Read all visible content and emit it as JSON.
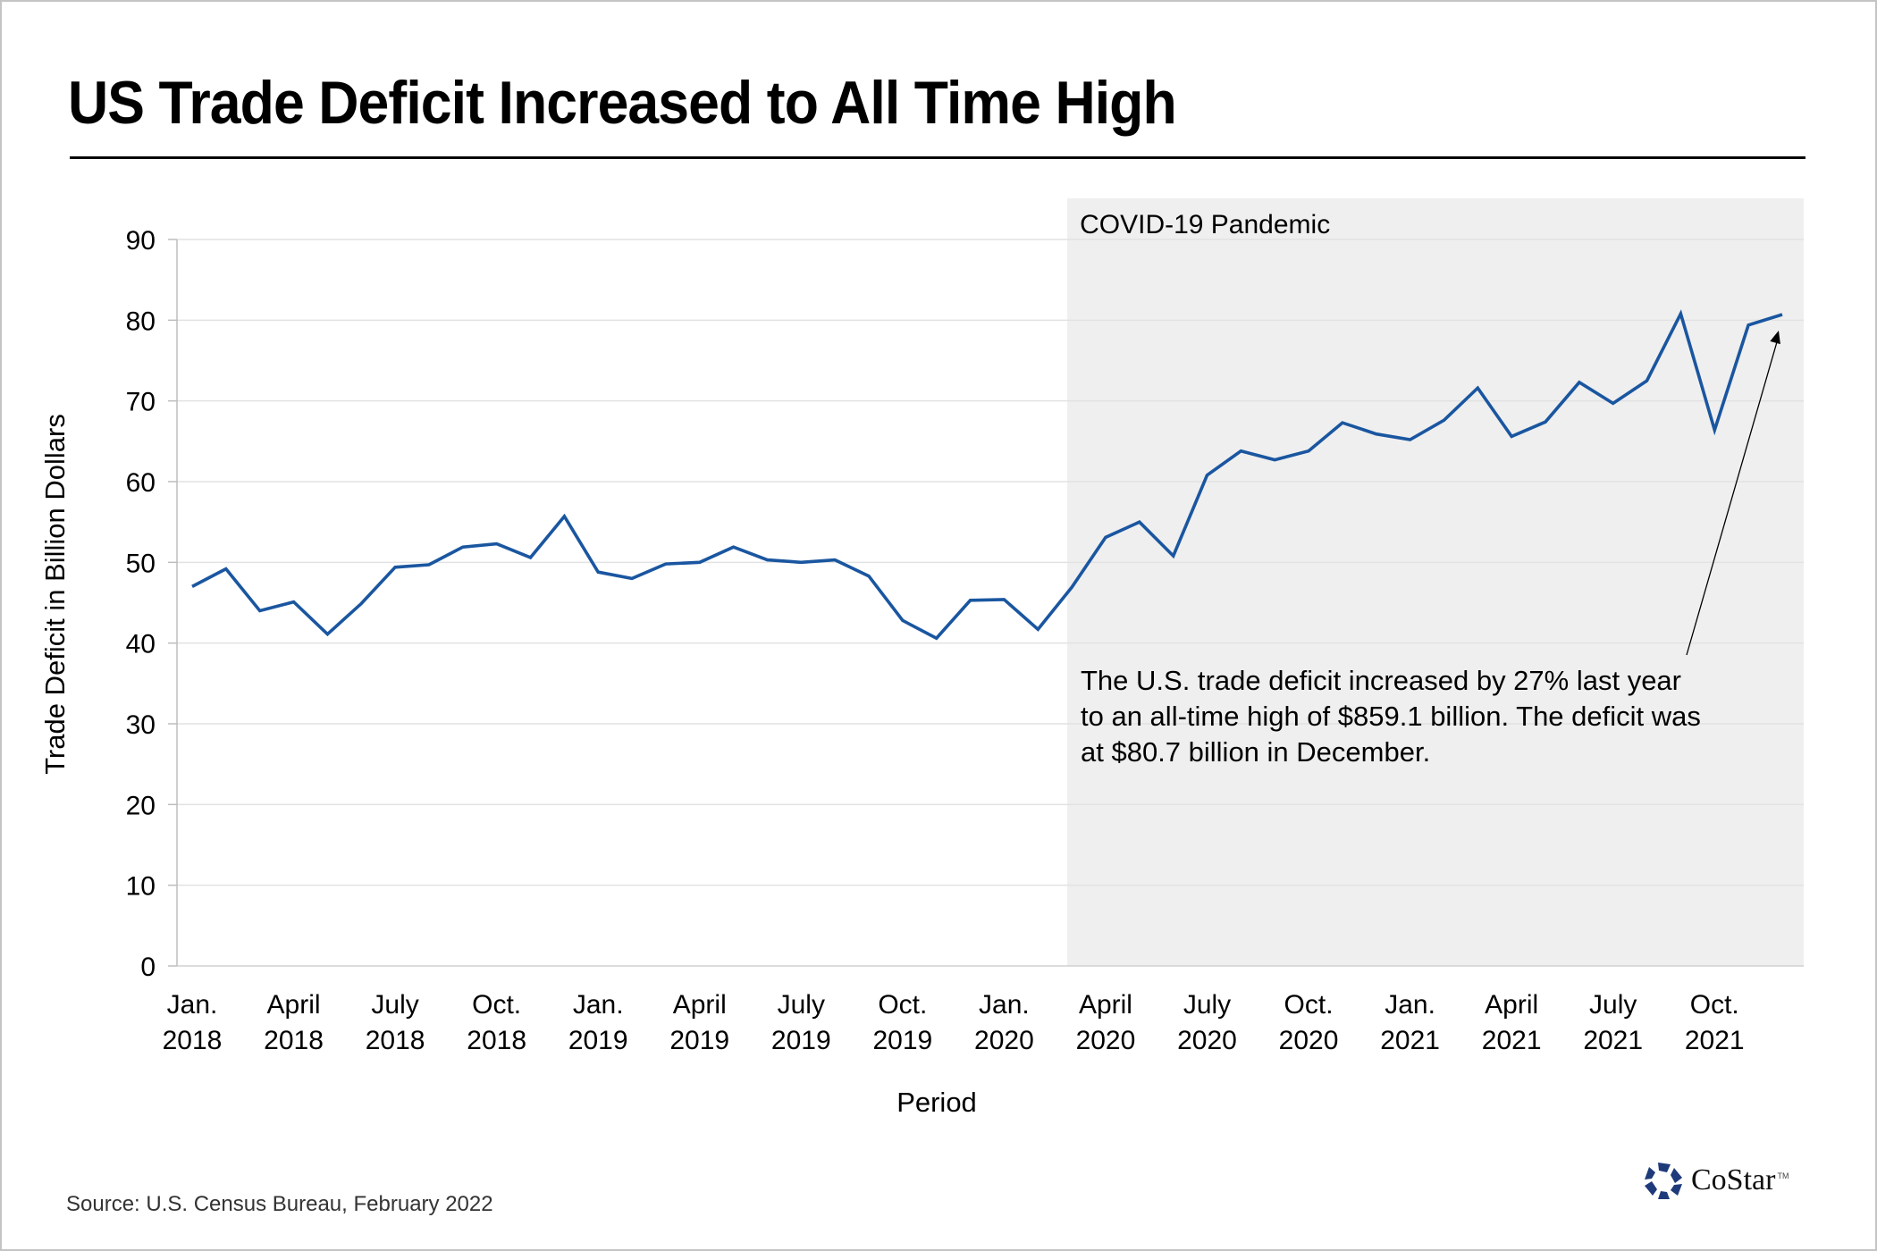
{
  "page": {
    "title": "US Trade Deficit Increased to All Time High",
    "source": "Source: U.S. Census Bureau, February 2022",
    "logo": {
      "text": "CoStar",
      "tm": "TM",
      "color": "#1f3a7a"
    }
  },
  "chart_data": {
    "type": "line",
    "title": "US Trade Deficit Increased to All Time High",
    "xlabel": "Period",
    "ylabel": "Trade Deficit in Billion Dollars",
    "ylim": [
      0,
      90
    ],
    "yticks": [
      0,
      10,
      20,
      30,
      40,
      50,
      60,
      70,
      80,
      90
    ],
    "grid": true,
    "line_color": "#1a56a0",
    "x": [
      "2018-01",
      "2018-02",
      "2018-03",
      "2018-04",
      "2018-05",
      "2018-06",
      "2018-07",
      "2018-08",
      "2018-09",
      "2018-10",
      "2018-11",
      "2018-12",
      "2019-01",
      "2019-02",
      "2019-03",
      "2019-04",
      "2019-05",
      "2019-06",
      "2019-07",
      "2019-08",
      "2019-09",
      "2019-10",
      "2019-11",
      "2019-12",
      "2020-01",
      "2020-02",
      "2020-03",
      "2020-04",
      "2020-05",
      "2020-06",
      "2020-07",
      "2020-08",
      "2020-09",
      "2020-10",
      "2020-11",
      "2020-12",
      "2021-01",
      "2021-02",
      "2021-03",
      "2021-04",
      "2021-05",
      "2021-06",
      "2021-07",
      "2021-08",
      "2021-09",
      "2021-10",
      "2021-11",
      "2021-12"
    ],
    "series": [
      {
        "name": "Trade Deficit",
        "values": [
          47.0,
          49.2,
          44.0,
          45.1,
          41.1,
          44.9,
          49.4,
          49.7,
          51.9,
          52.3,
          50.6,
          55.7,
          48.8,
          48.0,
          49.8,
          50.0,
          51.9,
          50.3,
          50.0,
          50.3,
          48.3,
          42.8,
          40.6,
          45.3,
          45.4,
          41.7,
          46.9,
          53.1,
          55.0,
          50.8,
          60.8,
          63.8,
          62.7,
          63.8,
          67.3,
          65.9,
          65.2,
          67.6,
          71.6,
          65.6,
          67.4,
          72.3,
          69.7,
          72.5,
          80.8,
          66.4,
          79.4,
          80.7
        ]
      }
    ],
    "xtick_labels": [
      {
        "index": 0,
        "line1": "Jan.",
        "line2": "2018"
      },
      {
        "index": 3,
        "line1": "April",
        "line2": "2018"
      },
      {
        "index": 6,
        "line1": "July",
        "line2": "2018"
      },
      {
        "index": 9,
        "line1": "Oct.",
        "line2": "2018"
      },
      {
        "index": 12,
        "line1": "Jan.",
        "line2": "2019"
      },
      {
        "index": 15,
        "line1": "April",
        "line2": "2019"
      },
      {
        "index": 18,
        "line1": "July",
        "line2": "2019"
      },
      {
        "index": 21,
        "line1": "Oct.",
        "line2": "2019"
      },
      {
        "index": 24,
        "line1": "Jan.",
        "line2": "2020"
      },
      {
        "index": 27,
        "line1": "April",
        "line2": "2020"
      },
      {
        "index": 30,
        "line1": "July",
        "line2": "2020"
      },
      {
        "index": 33,
        "line1": "Oct.",
        "line2": "2020"
      },
      {
        "index": 36,
        "line1": "Jan.",
        "line2": "2021"
      },
      {
        "index": 39,
        "line1": "April",
        "line2": "2021"
      },
      {
        "index": 42,
        "line1": "July",
        "line2": "2021"
      },
      {
        "index": 45,
        "line1": "Oct.",
        "line2": "2021"
      }
    ],
    "shaded_region": {
      "label": "COVID-19 Pandemic",
      "start": "2020-03",
      "end": "2021-12",
      "color": "#efefef"
    },
    "annotation": {
      "lines": [
        "The U.S. trade deficit increased by 27% last year",
        "to an all-time high of $859.1 billion. The deficit was",
        "at $80.7 billion in December."
      ],
      "points_to": "2021-12"
    }
  }
}
